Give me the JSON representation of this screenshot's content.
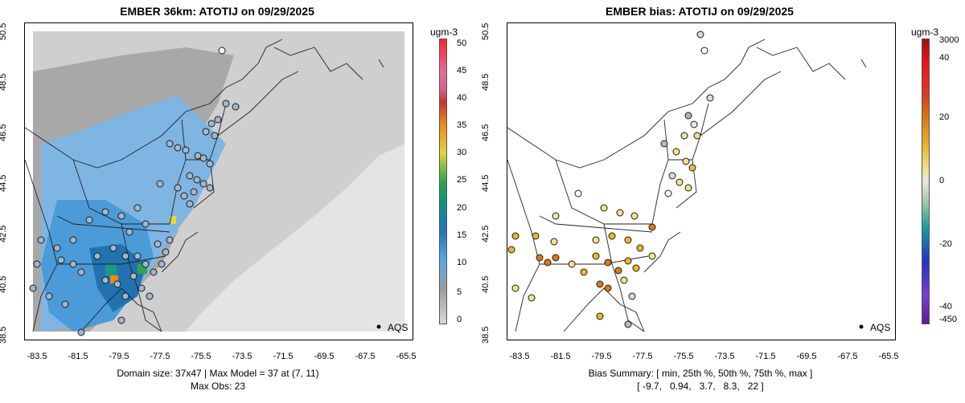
{
  "left": {
    "title": "EMBER 36km: ATOTIJ on 09/29/2025",
    "legend_label": "AQS",
    "caption_line1": "Domain size: 37x47 | Max Model = 37 at (7, 11)",
    "caption_line2": "Max Obs: 23",
    "colorbar": {
      "unit": "ugm-3",
      "ticks": [
        "50",
        "45",
        "40",
        "35",
        "30",
        "25",
        "20",
        "15",
        "10",
        "5",
        "0"
      ],
      "min": 0,
      "max": 51
    }
  },
  "right": {
    "title": "EMBER bias: ATOTIJ on 09/29/2025",
    "legend_label": "AQS",
    "caption_line1": "Bias Summary: [ min, 25th %, 50th %, 75th %, max ]",
    "caption_line2": "[ -9.7,   0.94,   3.7,   8.3,   22 ]",
    "colorbar": {
      "unit": "ugm-3",
      "ticks": [
        "3000",
        "40",
        "20",
        "0",
        "-20",
        "-40",
        "-450"
      ]
    }
  },
  "axes": {
    "y_ticks": [
      "50.5",
      "48.5",
      "46.5",
      "44.5",
      "42.5",
      "40.5",
      "38.5"
    ],
    "x_ticks": [
      "-83.5",
      "-81.5",
      "-79.5",
      "-77.5",
      "-75.5",
      "-73.5",
      "-71.5",
      "-69.5",
      "-67.5",
      "-65.5"
    ]
  },
  "colors": {
    "concentration_scale": [
      "#d9d9d9",
      "#9c9c9c",
      "#5ba8e8",
      "#2475b5",
      "#0d8f8a",
      "#2fa548",
      "#e3d63a",
      "#e98b1b",
      "#c9342a",
      "#e0709a",
      "#ff2030"
    ],
    "bias_scale": [
      "#5a1f92",
      "#7c3cd0",
      "#2233c0",
      "#199e9a",
      "#e6e6e6",
      "#f3e08a",
      "#e8b830",
      "#d97a15",
      "#d64020",
      "#f01020",
      "#a01010"
    ],
    "marker_gray": "#9e9e9e"
  }
}
